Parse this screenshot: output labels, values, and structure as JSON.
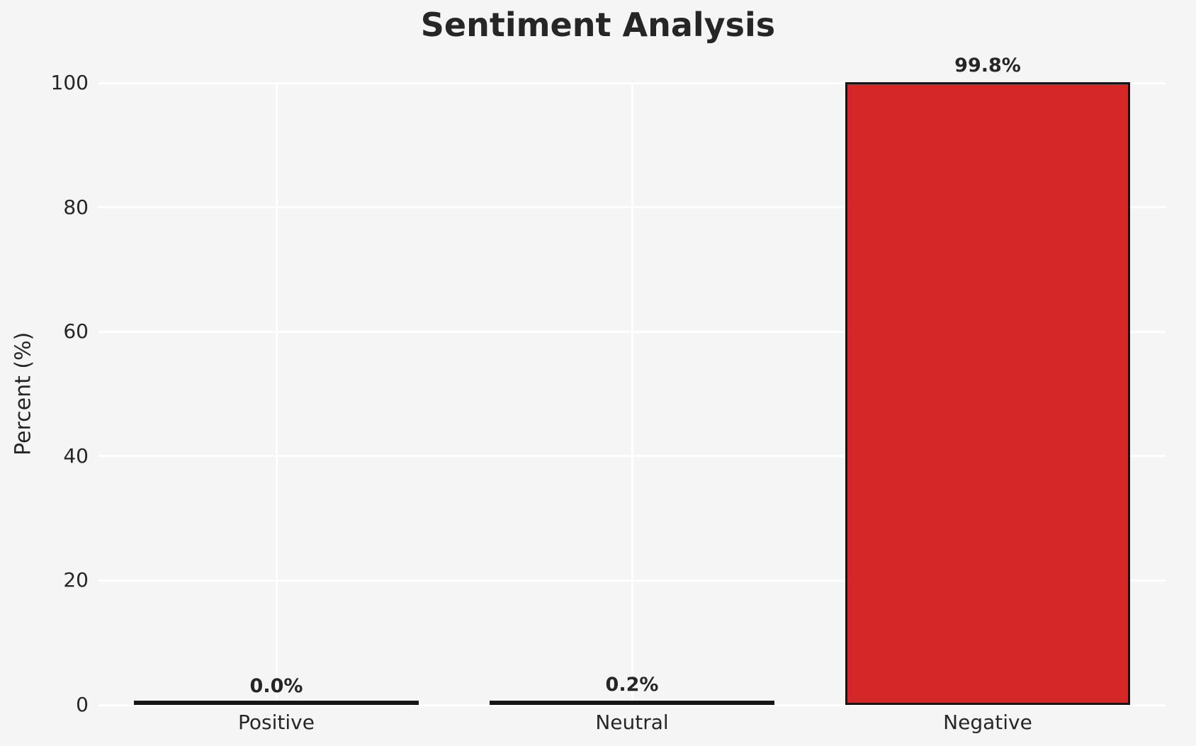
{
  "figure": {
    "title": "Sentiment Analysis"
  },
  "chart_data": {
    "type": "bar",
    "title": "Sentiment Analysis",
    "categories": [
      "Positive",
      "Neutral",
      "Negative"
    ],
    "values": [
      0.0,
      0.2,
      99.8
    ],
    "value_labels": [
      "0.0%",
      "0.2%",
      "99.8%"
    ],
    "xlabel": "",
    "ylabel": "Percent (%)",
    "ylim": [
      0,
      100
    ],
    "yticks": [
      0,
      20,
      40,
      60,
      80,
      100
    ],
    "ytick_labels": [
      "0",
      "20",
      "40",
      "60",
      "80",
      "100"
    ],
    "grid": "on",
    "legend": "none",
    "colors": {
      "background": "#f5f5f5",
      "grid": "#ffffff",
      "bar_fill": "#d62728",
      "bar_edge": "#161616",
      "text": "#262626"
    }
  }
}
